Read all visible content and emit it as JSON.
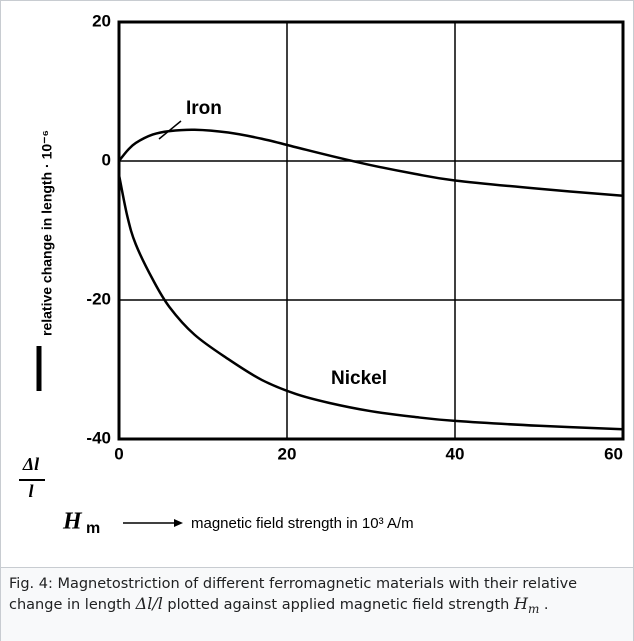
{
  "chart_data": {
    "type": "line",
    "y_label": "relative change in length · 10⁻⁶",
    "y_symbol_num": "Δl",
    "y_symbol_den": "l",
    "x_symbol": "H",
    "x_symbol_sub": "m",
    "x_label": "magnetic field strength in 10³ A/m",
    "x": [
      0,
      1,
      2,
      4,
      6,
      9,
      13,
      17,
      21,
      25,
      30,
      35,
      40,
      50,
      60
    ],
    "series": [
      {
        "name": "Iron",
        "color": "#000000",
        "values": [
          0,
          1.5,
          2.6,
          3.8,
          4.3,
          4.5,
          4.1,
          3.2,
          2.0,
          0.8,
          -0.6,
          -1.8,
          -2.8,
          -4.0,
          -5.0
        ]
      },
      {
        "name": "Nickel",
        "color": "#000000",
        "values": [
          -2,
          -8,
          -12,
          -17,
          -21,
          -25,
          -28.5,
          -31.5,
          -33.5,
          -34.8,
          -36,
          -36.8,
          -37.4,
          -38.1,
          -38.6
        ]
      }
    ],
    "xlim": [
      0,
      60
    ],
    "xticks": [
      0,
      20,
      40,
      60
    ],
    "ylim": [
      -40,
      20
    ],
    "yticks": [
      -40,
      -20,
      0,
      20
    ],
    "grid": true
  },
  "caption": [
    "Fig. 4: Magnetostriction of different ferromagnetic materials with their relative change in length ",
    "Δl/l",
    " plotted against applied magnetic field strength ",
    "H",
    "m",
    " ."
  ]
}
